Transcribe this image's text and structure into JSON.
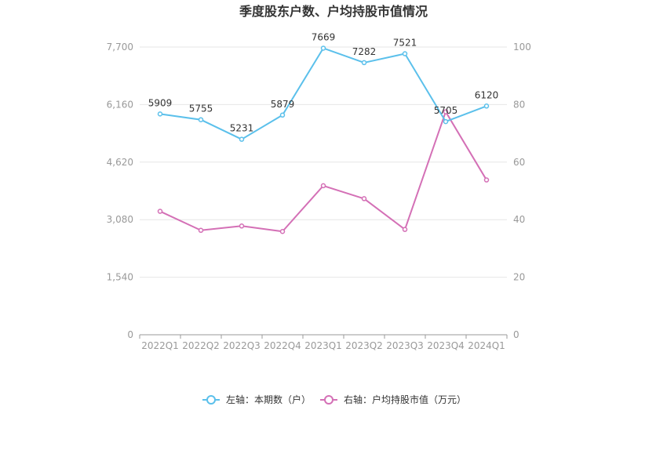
{
  "chart_data": {
    "type": "line",
    "title": "季度股东户数、户均持股市值情况",
    "categories": [
      "2022Q1",
      "2022Q2",
      "2022Q3",
      "2022Q4",
      "2023Q1",
      "2023Q2",
      "2023Q3",
      "2023Q4",
      "2024Q1"
    ],
    "y_left": {
      "ticks": [
        "0",
        "1,540",
        "3,080",
        "4,620",
        "6,160",
        "7,700"
      ],
      "range": [
        0,
        7700
      ]
    },
    "y_right": {
      "ticks": [
        "0",
        "20",
        "40",
        "60",
        "80",
        "100"
      ],
      "range": [
        0,
        100
      ]
    },
    "grid": true,
    "legend_position": "bottom",
    "series": [
      {
        "name": "左轴：本期数（户）",
        "axis": "left",
        "color": "#5bc0eb",
        "values": [
          5909,
          5755,
          5231,
          5879,
          7669,
          7282,
          7521,
          5705,
          6120
        ],
        "labels": [
          "5909",
          "5755",
          "5231",
          "5879",
          "7669",
          "7282",
          "7521",
          "5705",
          "6120"
        ]
      },
      {
        "name": "右轴：户均持股市值（万元）",
        "axis": "right",
        "color": "#d470b6",
        "values": [
          42.9,
          36.3,
          37.8,
          35.9,
          51.8,
          47.3,
          36.6,
          77.5,
          53.8
        ]
      }
    ]
  }
}
